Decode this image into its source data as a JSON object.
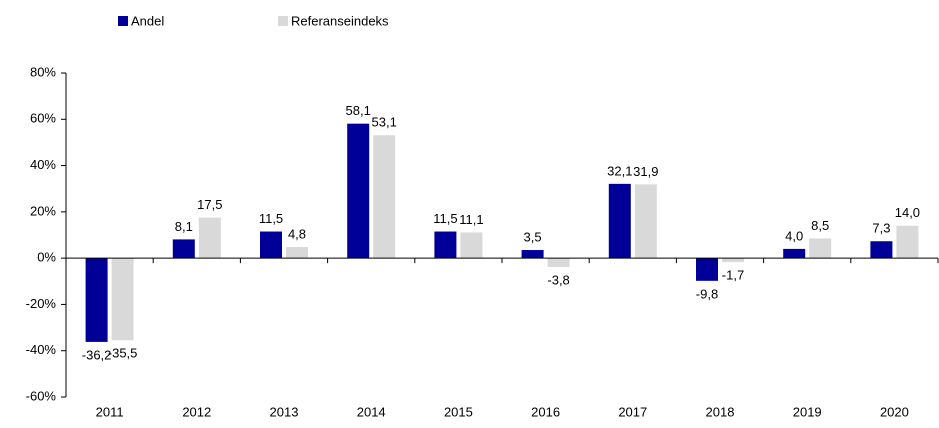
{
  "chart_data": {
    "type": "bar",
    "categories": [
      "2011",
      "2012",
      "2013",
      "2014",
      "2015",
      "2016",
      "2017",
      "2018",
      "2019",
      "2020"
    ],
    "series": [
      {
        "name": "Andel",
        "color": "#000099",
        "values": [
          -36.2,
          8.1,
          11.5,
          58.1,
          11.5,
          3.5,
          32.1,
          -9.8,
          4.0,
          7.3
        ],
        "value_labels": [
          "-36,2",
          "8,1",
          "11,5",
          "58,1",
          "11,5",
          "3,5",
          "32,1",
          "-9,8",
          "4,0",
          "7,3"
        ]
      },
      {
        "name": "Referanseindeks",
        "color": "#d9d9d9",
        "values": [
          -35.5,
          17.5,
          4.8,
          53.1,
          11.1,
          -3.8,
          31.9,
          -1.7,
          8.5,
          14.0
        ],
        "value_labels": [
          "-35,5",
          "17,5",
          "4,8",
          "53,1",
          "11,1",
          "-3,8",
          "31,9",
          "-1,7",
          "8,5",
          "14,0"
        ]
      }
    ],
    "ylim": [
      -60,
      80
    ],
    "yticks": [
      {
        "value": -60,
        "label": "-60%"
      },
      {
        "value": -40,
        "label": "-40%"
      },
      {
        "value": -20,
        "label": "-20%"
      },
      {
        "value": 0,
        "label": "0%"
      },
      {
        "value": 20,
        "label": "20%"
      },
      {
        "value": 40,
        "label": "40%"
      },
      {
        "value": 60,
        "label": "60%"
      },
      {
        "value": 80,
        "label": "80%"
      }
    ],
    "grid": false,
    "legend": "top"
  }
}
